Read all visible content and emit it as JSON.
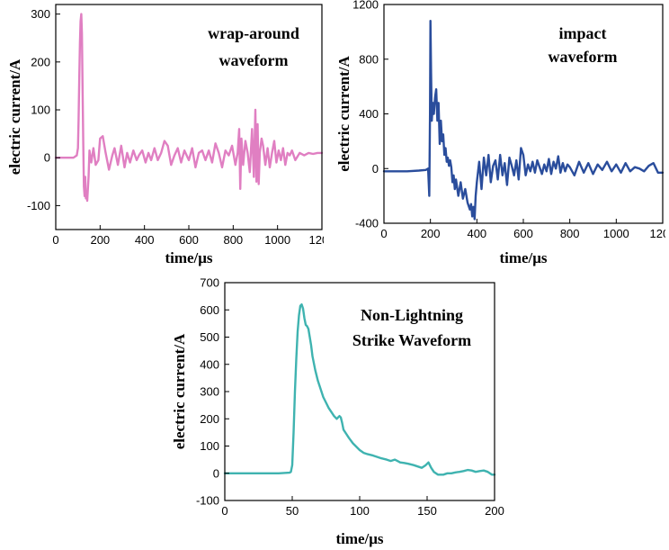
{
  "chart_data": [
    {
      "type": "line",
      "title": [
        "wrap-around",
        "waveform"
      ],
      "xlabel": "time/μs",
      "ylabel": "electric current/A",
      "xlim": [
        0,
        1200
      ],
      "ylim": [
        -150,
        320
      ],
      "xticks": [
        0,
        200,
        400,
        600,
        800,
        1000,
        1200
      ],
      "yticks": [
        -100,
        0,
        100,
        200,
        300
      ],
      "grid": false,
      "color": "#e07fc2",
      "series": [
        {
          "x": [
            0,
            80,
            95,
            100,
            103,
            106,
            109,
            112,
            115,
            118,
            121,
            124,
            127,
            130,
            133,
            136,
            139,
            142,
            148,
            152,
            160,
            170,
            180,
            192,
            200,
            212,
            225,
            240,
            255,
            265,
            280,
            295,
            310,
            322,
            335,
            350,
            365,
            375,
            390,
            405,
            418,
            430,
            445,
            460,
            475,
            490,
            505,
            520,
            535,
            550,
            565,
            580,
            600,
            615,
            630,
            645,
            660,
            675,
            690,
            705,
            720,
            735,
            750,
            765,
            780,
            795,
            810,
            820,
            827,
            832,
            837,
            845,
            855,
            865,
            875,
            885,
            893,
            900,
            905,
            910,
            915,
            920,
            928,
            935,
            945,
            955,
            965,
            975,
            985,
            995,
            1005,
            1015,
            1025,
            1035,
            1045,
            1055,
            1065,
            1080,
            1100,
            1120,
            1140,
            1160,
            1180,
            1200
          ],
          "y": [
            0,
            0,
            5,
            20,
            80,
            160,
            240,
            285,
            300,
            260,
            150,
            30,
            -60,
            -80,
            -40,
            -85,
            -70,
            -90,
            -40,
            15,
            -10,
            20,
            -15,
            -5,
            40,
            45,
            10,
            -25,
            5,
            20,
            -15,
            25,
            -20,
            10,
            -10,
            15,
            -5,
            5,
            15,
            -10,
            10,
            -5,
            20,
            -5,
            10,
            35,
            25,
            -15,
            5,
            20,
            -10,
            15,
            -5,
            20,
            -20,
            10,
            15,
            -5,
            15,
            -10,
            30,
            10,
            -20,
            15,
            5,
            25,
            -15,
            10,
            60,
            -65,
            40,
            -15,
            35,
            10,
            -30,
            60,
            -40,
            100,
            -50,
            70,
            -55,
            10,
            40,
            25,
            -15,
            20,
            -20,
            10,
            35,
            -10,
            15,
            -5,
            20,
            -15,
            10,
            5,
            15,
            -5,
            10,
            5,
            10,
            8,
            10,
            10
          ]
        }
      ]
    },
    {
      "type": "line",
      "title": [
        "impact",
        "waveform"
      ],
      "xlabel": "time/μs",
      "ylabel": "electric current/A",
      "xlim": [
        0,
        1200
      ],
      "ylim": [
        -400,
        1200
      ],
      "xticks": [
        0,
        200,
        400,
        600,
        800,
        1000,
        1200
      ],
      "yticks": [
        -400,
        0,
        400,
        800,
        1200
      ],
      "grid": false,
      "color": "#2a4d9c",
      "series": [
        {
          "x": [
            0,
            100,
            150,
            180,
            190,
            195,
            198,
            200,
            203,
            206,
            210,
            215,
            220,
            225,
            230,
            235,
            240,
            245,
            250,
            255,
            260,
            265,
            270,
            275,
            280,
            285,
            290,
            295,
            300,
            305,
            310,
            320,
            330,
            340,
            350,
            360,
            370,
            375,
            380,
            385,
            390,
            395,
            400,
            410,
            420,
            430,
            440,
            450,
            460,
            470,
            480,
            490,
            500,
            510,
            520,
            530,
            540,
            550,
            560,
            570,
            580,
            590,
            600,
            610,
            620,
            630,
            640,
            650,
            660,
            670,
            680,
            690,
            700,
            710,
            720,
            730,
            740,
            750,
            760,
            770,
            780,
            790,
            800,
            820,
            840,
            860,
            880,
            900,
            920,
            940,
            960,
            980,
            1000,
            1020,
            1040,
            1060,
            1080,
            1100,
            1120,
            1140,
            1160,
            1180,
            1200
          ],
          "y": [
            -20,
            -20,
            -15,
            -10,
            0,
            -200,
            400,
            1080,
            700,
            350,
            480,
            400,
            520,
            580,
            350,
            480,
            180,
            350,
            200,
            250,
            100,
            150,
            50,
            80,
            20,
            60,
            10,
            -100,
            -50,
            -150,
            -80,
            -200,
            -100,
            -220,
            -150,
            -250,
            -300,
            -260,
            -350,
            -280,
            -370,
            -200,
            -100,
            50,
            -150,
            80,
            -50,
            100,
            -100,
            20,
            60,
            -80,
            100,
            -50,
            40,
            -120,
            80,
            20,
            -50,
            60,
            -80,
            150,
            100,
            -50,
            30,
            -20,
            50,
            -30,
            60,
            10,
            -40,
            30,
            -20,
            70,
            -40,
            50,
            0,
            90,
            -30,
            40,
            -20,
            30,
            10,
            -50,
            50,
            -30,
            40,
            -40,
            30,
            -10,
            50,
            -20,
            30,
            -30,
            40,
            -20,
            10,
            0,
            -20,
            20,
            40,
            -30,
            -30
          ]
        }
      ]
    },
    {
      "type": "line",
      "title": [
        "Non-Lightning",
        "Strike Waveform"
      ],
      "xlabel": "time/μs",
      "ylabel": "electric current/A",
      "xlim": [
        0,
        200
      ],
      "ylim": [
        -100,
        700
      ],
      "xticks": [
        0,
        50,
        100,
        150,
        200
      ],
      "yticks": [
        -100,
        0,
        100,
        200,
        300,
        400,
        500,
        600,
        700
      ],
      "grid": false,
      "color": "#3fb3b0",
      "series": [
        {
          "x": [
            0,
            20,
            40,
            48,
            49,
            50,
            51,
            52,
            53,
            54,
            55,
            56,
            57,
            58,
            59,
            60,
            61,
            62,
            63,
            64,
            65,
            67,
            69,
            71,
            73,
            75,
            77,
            79,
            81,
            83,
            84,
            85,
            86,
            87,
            88,
            90,
            92,
            95,
            98,
            100,
            103,
            106,
            110,
            113,
            116,
            120,
            123,
            126,
            128,
            130,
            133,
            136,
            140,
            143,
            146,
            149,
            151,
            153,
            155,
            158,
            162,
            165,
            168,
            171,
            174,
            177,
            180,
            183,
            186,
            189,
            192,
            195,
            198,
            200
          ],
          "y": [
            0,
            0,
            0,
            2,
            5,
            30,
            150,
            300,
            420,
            520,
            580,
            615,
            620,
            605,
            570,
            545,
            540,
            530,
            500,
            470,
            430,
            380,
            340,
            310,
            280,
            260,
            240,
            225,
            210,
            200,
            205,
            210,
            205,
            185,
            160,
            145,
            130,
            110,
            95,
            85,
            75,
            70,
            65,
            60,
            55,
            50,
            45,
            50,
            45,
            40,
            38,
            35,
            30,
            25,
            20,
            30,
            40,
            20,
            5,
            -5,
            -5,
            0,
            0,
            3,
            5,
            8,
            12,
            10,
            5,
            8,
            10,
            5,
            -5,
            -5
          ]
        }
      ]
    }
  ]
}
